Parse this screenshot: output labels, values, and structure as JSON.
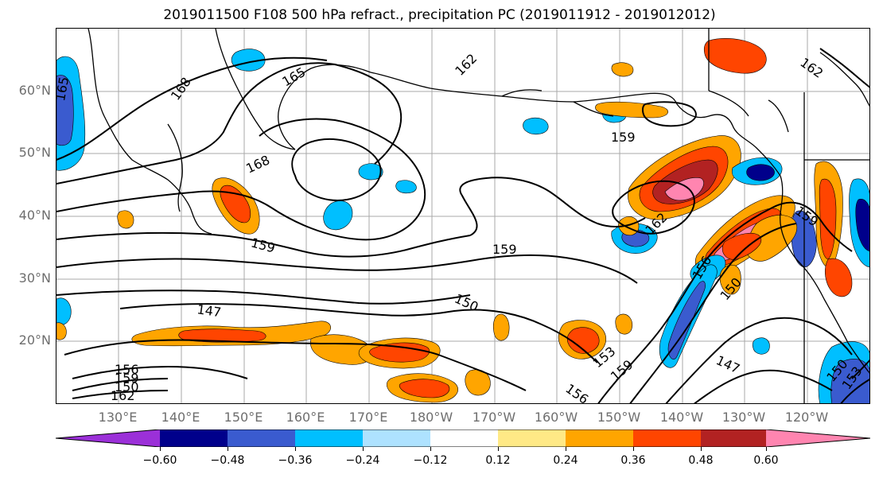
{
  "title": "2019011500 F108 500 hPa refract., precipitation PC (2019011912 - 2019012012)",
  "map": {
    "lat_labels": [
      "60°N",
      "50°N",
      "40°N",
      "30°N",
      "20°N"
    ],
    "lon_labels": [
      "130°E",
      "140°E",
      "150°E",
      "160°E",
      "170°E",
      "180°W",
      "170°W",
      "160°W",
      "150°W",
      "140°W",
      "130°W",
      "120°W"
    ],
    "contour_labels": [
      "165",
      "168",
      "165",
      "162",
      "168",
      "159",
      "159",
      "159",
      "162",
      "156",
      "150",
      "147",
      "150",
      "153",
      "159",
      "156",
      "147",
      "150",
      "153",
      "162",
      "159",
      "156",
      "150",
      "159",
      "162"
    ],
    "gridlines": true,
    "field": "precipitation PC",
    "contour_field": "500 hPa refract."
  },
  "colorbar": {
    "tick_labels": [
      "−0.60",
      "−0.48",
      "−0.36",
      "−0.24",
      "−0.12",
      "0.12",
      "0.24",
      "0.36",
      "0.48",
      "0.60"
    ],
    "colors": [
      "#9b30d8",
      "#00008b",
      "#3a5bcf",
      "#00bfff",
      "#aee2ff",
      "#ffffff",
      "#ffe986",
      "#ffa500",
      "#ff4500",
      "#b22222",
      "#ff85b0"
    ]
  }
}
